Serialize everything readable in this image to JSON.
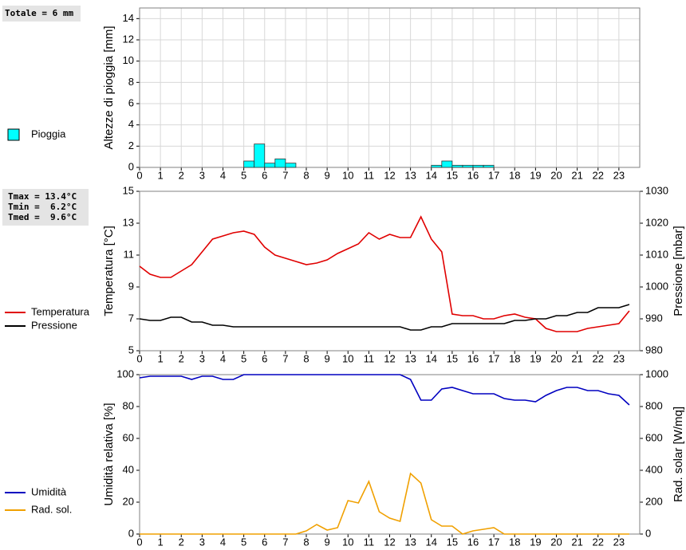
{
  "chart_data": [
    {
      "type": "histogram",
      "annotation": "Totale = 6 mm",
      "ylabel": "Altezze di pioggia [mm]",
      "series": [
        {
          "name": "Pioggia",
          "color": "#00ffff",
          "bins": [
            0,
            0.5,
            1,
            1.5,
            2,
            2.5,
            3,
            3.5,
            4,
            4.5,
            5,
            5.5,
            6,
            6.5,
            7,
            7.5,
            8,
            8.5,
            9,
            9.5,
            10,
            10.5,
            11,
            11.5,
            12,
            12.5,
            13,
            13.5,
            14,
            14.5,
            15,
            15.5,
            16,
            16.5,
            17,
            17.5,
            18,
            18.5,
            19,
            19.5,
            20,
            20.5,
            21,
            21.5,
            22,
            22.5,
            23,
            23.5,
            24
          ],
          "values": [
            0,
            0,
            0,
            0,
            0,
            0,
            0,
            0,
            0,
            0,
            0.6,
            2.2,
            0.4,
            0.8,
            0.4,
            0,
            0,
            0,
            0,
            0,
            0,
            0,
            0,
            0,
            0,
            0,
            0,
            0,
            0.2,
            0.6,
            0.2,
            0.2,
            0.2,
            0.2,
            0,
            0,
            0,
            0,
            0,
            0,
            0,
            0,
            0,
            0,
            0,
            0,
            0,
            0
          ]
        }
      ],
      "xlim": [
        0,
        24
      ],
      "xticks": [
        0,
        1,
        2,
        3,
        4,
        5,
        6,
        7,
        8,
        9,
        10,
        11,
        12,
        13,
        14,
        15,
        16,
        17,
        18,
        19,
        20,
        21,
        22,
        23
      ],
      "ylim": [
        0,
        15
      ],
      "yticks": [
        0,
        2,
        4,
        6,
        8,
        10,
        12,
        14
      ],
      "grid": true
    },
    {
      "type": "line",
      "annotations": [
        "Tmax = 13.4°C",
        "Tmin =  6.2°C",
        "Tmed =  9.6°C"
      ],
      "ylabel": "Temperatura [°C]",
      "y2label": "Pressione [mbar]",
      "x": [
        0,
        0.5,
        1,
        1.5,
        2,
        2.5,
        3,
        3.5,
        4,
        4.5,
        5,
        5.5,
        6,
        6.5,
        7,
        7.5,
        8,
        8.5,
        9,
        9.5,
        10,
        10.5,
        11,
        11.5,
        12,
        12.5,
        13,
        13.5,
        14,
        14.5,
        15,
        15.5,
        16,
        16.5,
        17,
        17.5,
        18,
        18.5,
        19,
        19.5,
        20,
        20.5,
        21,
        21.5,
        22,
        22.5,
        23,
        23.5
      ],
      "series": [
        {
          "name": "Temperatura",
          "color": "#e00000",
          "values": [
            10.3,
            9.8,
            9.6,
            9.6,
            10.0,
            10.4,
            11.2,
            12.0,
            12.2,
            12.4,
            12.5,
            12.3,
            11.5,
            11.0,
            10.8,
            10.6,
            10.4,
            10.5,
            10.7,
            11.1,
            11.4,
            11.7,
            12.4,
            12.0,
            12.3,
            12.1,
            12.1,
            13.4,
            12.0,
            11.2,
            7.3,
            7.2,
            7.2,
            7.0,
            7.0,
            7.2,
            7.3,
            7.1,
            7.0,
            6.4,
            6.2,
            6.2,
            6.2,
            6.4,
            6.5,
            6.6,
            6.7,
            7.5
          ]
        },
        {
          "name": "Pressione",
          "color": "#000000",
          "axis": "y2",
          "values": [
            990,
            989.5,
            989.5,
            990.5,
            990.5,
            989,
            989,
            988,
            988,
            987.5,
            987.5,
            987.5,
            987.5,
            987.5,
            987.5,
            987.5,
            987.5,
            987.5,
            987.5,
            987.5,
            987.5,
            987.5,
            987.5,
            987.5,
            987.5,
            987.5,
            986.5,
            986.5,
            987.5,
            987.5,
            988.5,
            988.5,
            988.5,
            988.5,
            988.5,
            988.5,
            989.5,
            989.5,
            990,
            990,
            991,
            991,
            992,
            992,
            993.5,
            993.5,
            993.5,
            994.5
          ]
        }
      ],
      "xlim": [
        0,
        24
      ],
      "xticks": [
        0,
        1,
        2,
        3,
        4,
        5,
        6,
        7,
        8,
        9,
        10,
        11,
        12,
        13,
        14,
        15,
        16,
        17,
        18,
        19,
        20,
        21,
        22,
        23
      ],
      "ylim": [
        5,
        15
      ],
      "yticks": [
        5,
        7,
        9,
        11,
        13,
        15
      ],
      "y2lim": [
        980,
        1030
      ],
      "y2ticks": [
        980,
        990,
        1000,
        1010,
        1020,
        1030
      ],
      "grid": false
    },
    {
      "type": "line",
      "ylabel": "Umidità relativa [%]",
      "y2label": "Rad. solar [W/mq]",
      "x": [
        0,
        0.5,
        1,
        1.5,
        2,
        2.5,
        3,
        3.5,
        4,
        4.5,
        5,
        5.5,
        6,
        6.5,
        7,
        7.5,
        8,
        8.5,
        9,
        9.5,
        10,
        10.5,
        11,
        11.5,
        12,
        12.5,
        13,
        13.5,
        14,
        14.5,
        15,
        15.5,
        16,
        16.5,
        17,
        17.5,
        18,
        18.5,
        19,
        19.5,
        20,
        20.5,
        21,
        21.5,
        22,
        22.5,
        23,
        23.5
      ],
      "series": [
        {
          "name": "Umidità",
          "color": "#0000c0",
          "values": [
            98,
            99,
            99,
            99,
            99,
            97,
            99,
            99,
            97,
            97,
            100,
            100,
            100,
            100,
            100,
            100,
            100,
            100,
            100,
            100,
            100,
            100,
            100,
            100,
            100,
            100,
            97,
            84,
            84,
            91,
            92,
            90,
            88,
            88,
            88,
            85,
            84,
            84,
            83,
            87,
            90,
            92,
            92,
            90,
            90,
            88,
            87,
            81
          ]
        },
        {
          "name": "Rad. sol.",
          "color": "#f0a000",
          "axis": "y2",
          "values": [
            0,
            0,
            0,
            0,
            0,
            0,
            0,
            0,
            0,
            0,
            0,
            0,
            0,
            0,
            0,
            0,
            20,
            60,
            25,
            40,
            210,
            195,
            330,
            140,
            100,
            80,
            380,
            320,
            90,
            50,
            50,
            0,
            20,
            30,
            40,
            0,
            0,
            0,
            0,
            0,
            0,
            0,
            0,
            0,
            0,
            0,
            0,
            0
          ]
        }
      ],
      "xlim": [
        0,
        24
      ],
      "xticks": [
        0,
        1,
        2,
        3,
        4,
        5,
        6,
        7,
        8,
        9,
        10,
        11,
        12,
        13,
        14,
        15,
        16,
        17,
        18,
        19,
        20,
        21,
        22,
        23
      ],
      "ylim": [
        0,
        100
      ],
      "yticks": [
        0,
        20,
        40,
        60,
        80,
        100
      ],
      "y2lim": [
        0,
        1000
      ],
      "y2ticks": [
        0,
        200,
        400,
        600,
        800,
        1000
      ],
      "grid": false
    }
  ]
}
